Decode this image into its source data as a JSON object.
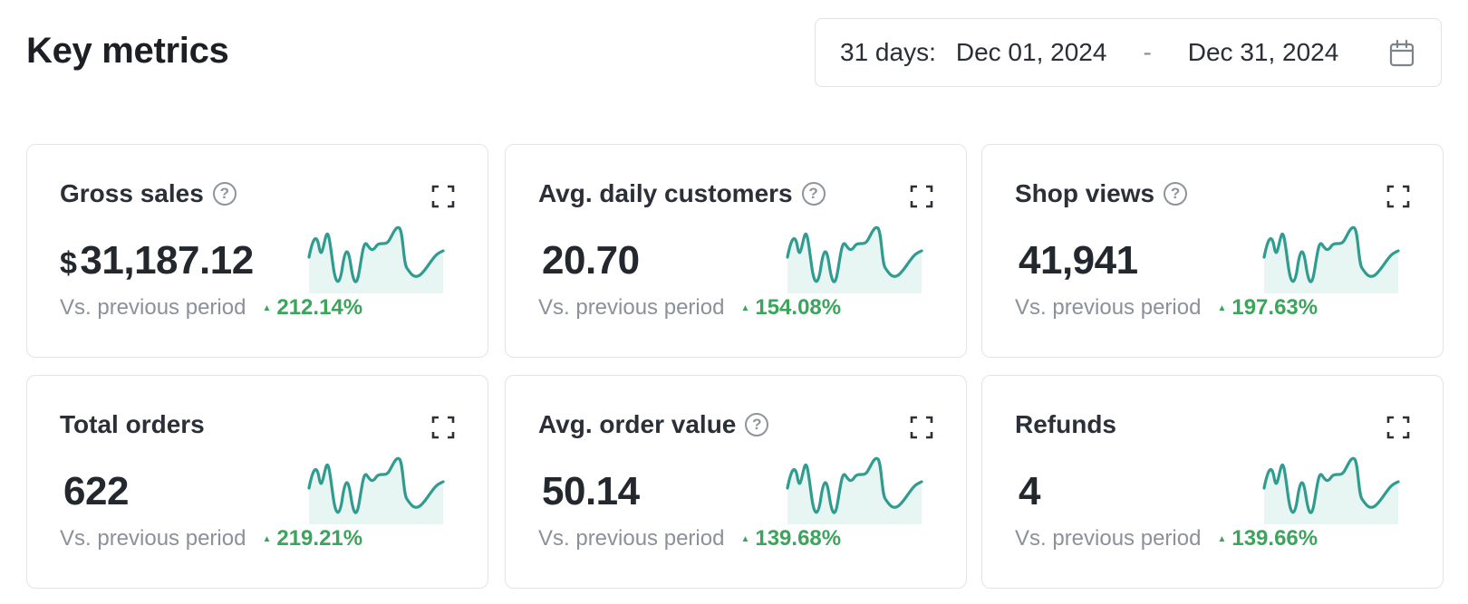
{
  "header": {
    "title": "Key metrics",
    "date_range": {
      "label": "31 days:",
      "start": "Dec 01, 2024",
      "separator": "-",
      "end": "Dec 31, 2024",
      "icon": "calendar-icon"
    }
  },
  "colors": {
    "sparkline": "#2f9c8f",
    "sparkline_fill": "#e7f5f3",
    "positive": "#3aa55b"
  },
  "metrics": [
    {
      "title": "Gross sales",
      "has_help": true,
      "currency": "$",
      "value": "31,187.12",
      "compare_label": "Vs. previous period",
      "delta": "212.14%"
    },
    {
      "title": "Avg. daily customers",
      "has_help": true,
      "currency": "",
      "value": "20.70",
      "compare_label": "Vs. previous period",
      "delta": "154.08%"
    },
    {
      "title": "Shop views",
      "has_help": true,
      "currency": "",
      "value": "41,941",
      "compare_label": "Vs. previous period",
      "delta": "197.63%"
    },
    {
      "title": "Total orders",
      "has_help": false,
      "currency": "",
      "value": "622",
      "compare_label": "Vs. previous period",
      "delta": "219.21%"
    },
    {
      "title": "Avg. order value",
      "has_help": true,
      "currency": "",
      "value": "50.14",
      "compare_label": "Vs. previous period",
      "delta": "139.68%"
    },
    {
      "title": "Refunds",
      "has_help": false,
      "currency": "",
      "value": "4",
      "compare_label": "Vs. previous period",
      "delta": "139.66%"
    }
  ]
}
